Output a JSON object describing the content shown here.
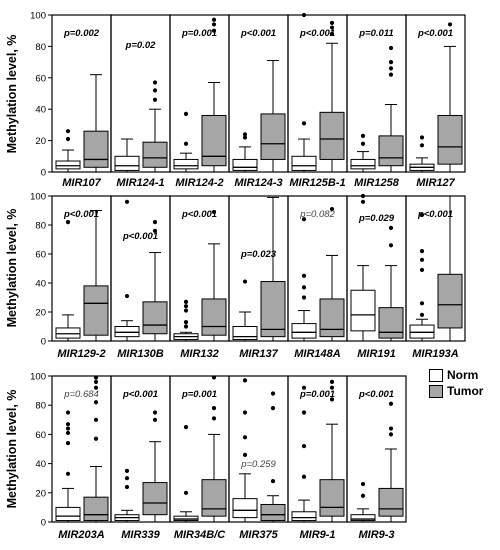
{
  "colors": {
    "norm": "#ffffff",
    "tumor": "#a6a6a6",
    "stroke": "#000000"
  },
  "legend": {
    "norm": "Norm",
    "tumor": "Tumor"
  },
  "chart_data": [
    {
      "type": "boxplot",
      "ylabel": "Methylation level, %",
      "ylim": [
        0,
        100
      ],
      "yticks": [
        0,
        20,
        40,
        60,
        80,
        100
      ],
      "groups": [
        {
          "label": "MIR107",
          "p": "p=0.002",
          "p_style": "bold",
          "norm": {
            "whislo": 0,
            "q1": 2,
            "med": 4,
            "q3": 7,
            "whishi": 14,
            "fliers": [
              21,
              26
            ]
          },
          "tumor": {
            "whislo": 0,
            "q1": 3,
            "med": 8,
            "q3": 26,
            "whishi": 62,
            "fliers": []
          }
        },
        {
          "label": "MIR124-1",
          "p": "p=0.02",
          "p_style": "bold",
          "norm": {
            "whislo": 0,
            "q1": 1,
            "med": 4,
            "q3": 10,
            "whishi": 21,
            "fliers": []
          },
          "tumor": {
            "whislo": 0,
            "q1": 3,
            "med": 9,
            "q3": 19,
            "whishi": 40,
            "fliers": [
              46,
              52,
              57
            ]
          }
        },
        {
          "label": "MIR124-2",
          "p": "p=0.001",
          "p_style": "bold",
          "norm": {
            "whislo": 0,
            "q1": 2,
            "med": 4,
            "q3": 8,
            "whishi": 12,
            "fliers": [
              18,
              37
            ]
          },
          "tumor": {
            "whislo": 0,
            "q1": 4,
            "med": 10,
            "q3": 36,
            "whishi": 57,
            "fliers": [
              90,
              94,
              97
            ]
          }
        },
        {
          "label": "MIR124-3",
          "p": "p<0.001",
          "p_style": "bold",
          "norm": {
            "whislo": 0,
            "q1": 1,
            "med": 3,
            "q3": 8,
            "whishi": 16,
            "fliers": [
              22,
              24
            ]
          },
          "tumor": {
            "whislo": 0,
            "q1": 8,
            "med": 18,
            "q3": 37,
            "whishi": 71,
            "fliers": []
          }
        },
        {
          "label": "MIR125B-1",
          "p": "p<0.001",
          "p_style": "bold",
          "norm": {
            "whislo": 0,
            "q1": 1,
            "med": 4,
            "q3": 10,
            "whishi": 21,
            "fliers": [
              31,
              100
            ]
          },
          "tumor": {
            "whislo": 0,
            "q1": 8,
            "med": 21,
            "q3": 38,
            "whishi": 82,
            "fliers": [
              88,
              92,
              95
            ]
          }
        },
        {
          "label": "MIR1258",
          "p": "p=0.011",
          "p_style": "bold",
          "norm": {
            "whislo": 0,
            "q1": 2,
            "med": 4,
            "q3": 8,
            "whishi": 13,
            "fliers": [
              18,
              23
            ]
          },
          "tumor": {
            "whislo": 0,
            "q1": 4,
            "med": 9,
            "q3": 23,
            "whishi": 43,
            "fliers": [
              62,
              66,
              70,
              79
            ]
          }
        },
        {
          "label": "MIR127",
          "p": "p<0.001",
          "p_style": "bold",
          "norm": {
            "whislo": 0,
            "q1": 1,
            "med": 3,
            "q3": 5,
            "whishi": 9,
            "fliers": [
              17,
              22
            ]
          },
          "tumor": {
            "whislo": 0,
            "q1": 5,
            "med": 16,
            "q3": 36,
            "whishi": 80,
            "fliers": [
              94
            ]
          }
        },
        {
          "label": "MIR129-2",
          "p": "p<0.001",
          "p_style": "bold",
          "norm": {
            "whislo": 0,
            "q1": 2,
            "med": 5,
            "q3": 9,
            "whishi": 18,
            "fliers": [
              82
            ]
          },
          "tumor": {
            "whislo": 0,
            "q1": 4,
            "med": 26,
            "q3": 38,
            "whishi": 90,
            "fliers": []
          }
        },
        {
          "label": "MIR130B",
          "p": "p<0.001",
          "p_style": "bold",
          "norm": {
            "whislo": 0,
            "q1": 3,
            "med": 6,
            "q3": 10,
            "whishi": 14,
            "fliers": [
              31,
              96
            ]
          },
          "tumor": {
            "whislo": 0,
            "q1": 5,
            "med": 11,
            "q3": 27,
            "whishi": 61,
            "fliers": [
              76,
              82
            ]
          }
        },
        {
          "label": "MIR132",
          "p": "p<0.001",
          "p_style": "bold",
          "norm": {
            "whislo": 0,
            "q1": 1,
            "med": 3,
            "q3": 5,
            "whishi": 6,
            "fliers": [
              10,
              13,
              21,
              24,
              27
            ]
          },
          "tumor": {
            "whislo": 0,
            "q1": 4,
            "med": 10,
            "q3": 29,
            "whishi": 67,
            "fliers": [
              89
            ]
          }
        },
        {
          "label": "MIR137",
          "p": "p=0.023",
          "p_style": "bold",
          "norm": {
            "whislo": 0,
            "q1": 1,
            "med": 3,
            "q3": 10,
            "whishi": 20,
            "fliers": [
              41
            ]
          },
          "tumor": {
            "whislo": 0,
            "q1": 3,
            "med": 8,
            "q3": 41,
            "whishi": 99,
            "fliers": []
          }
        },
        {
          "label": "MIR148A",
          "p": "p=0.082",
          "p_style": "normal",
          "norm": {
            "whislo": 0,
            "q1": 2,
            "med": 6,
            "q3": 12,
            "whishi": 21,
            "fliers": [
              30,
              37,
              45,
              84
            ]
          },
          "tumor": {
            "whislo": 0,
            "q1": 3,
            "med": 8,
            "q3": 29,
            "whishi": 59,
            "fliers": [
              91
            ]
          }
        },
        {
          "label": "MIR191",
          "p": "p=0.029",
          "p_style": "bold",
          "norm": {
            "whislo": 0,
            "q1": 7,
            "med": 18,
            "q3": 35,
            "whishi": 52,
            "fliers": [
              96,
              100
            ]
          },
          "tumor": {
            "whislo": 0,
            "q1": 2,
            "med": 6,
            "q3": 23,
            "whishi": 52,
            "fliers": [
              66,
              78
            ]
          }
        },
        {
          "label": "MIR193A",
          "p": "p<0.001",
          "p_style": "bold",
          "norm": {
            "whislo": 0,
            "q1": 2,
            "med": 6,
            "q3": 11,
            "whishi": 15,
            "fliers": [
              18,
              26,
              49,
              56,
              62,
              87
            ]
          },
          "tumor": {
            "whislo": 0,
            "q1": 9,
            "med": 25,
            "q3": 46,
            "whishi": 100,
            "fliers": []
          }
        },
        {
          "label": "MIR203A",
          "p": "p=0.684",
          "p_style": "normal",
          "norm": {
            "whislo": 0,
            "q1": 1,
            "med": 4,
            "q3": 10,
            "whishi": 23,
            "fliers": [
              33,
              54,
              61,
              64,
              67,
              75
            ]
          },
          "tumor": {
            "whislo": 0,
            "q1": 1,
            "med": 5,
            "q3": 17,
            "whishi": 38,
            "fliers": [
              57,
              70,
              82,
              92,
              96,
              99
            ]
          }
        },
        {
          "label": "MIR339",
          "p": "p<0.001",
          "p_style": "bold",
          "norm": {
            "whislo": 0,
            "q1": 1,
            "med": 3,
            "q3": 5,
            "whishi": 8,
            "fliers": [
              24,
              30,
              35
            ]
          },
          "tumor": {
            "whislo": 0,
            "q1": 5,
            "med": 13,
            "q3": 27,
            "whishi": 55,
            "fliers": [
              70,
              75
            ]
          }
        },
        {
          "label": "MIR34B/C",
          "p": "p=0.001",
          "p_style": "bold",
          "norm": {
            "whislo": 0,
            "q1": 1,
            "med": 2,
            "q3": 4,
            "whishi": 7,
            "fliers": [
              20,
              65
            ]
          },
          "tumor": {
            "whislo": 0,
            "q1": 4,
            "med": 9,
            "q3": 29,
            "whishi": 60,
            "fliers": [
              71,
              78,
              99
            ]
          }
        },
        {
          "label": "MIR375",
          "p": "p=0.259",
          "p_style": "normal",
          "norm": {
            "whislo": 0,
            "q1": 3,
            "med": 8,
            "q3": 16,
            "whishi": 33,
            "fliers": [
              46,
              58,
              75,
              97
            ]
          },
          "tumor": {
            "whislo": 0,
            "q1": 1,
            "med": 5,
            "q3": 12,
            "whishi": 18,
            "fliers": [
              28,
              78,
              88
            ]
          }
        },
        {
          "label": "MIR9-1",
          "p": "p=0.001",
          "p_style": "bold",
          "norm": {
            "whislo": 0,
            "q1": 1,
            "med": 3,
            "q3": 7,
            "whishi": 15,
            "fliers": [
              31,
              52,
              75,
              92
            ]
          },
          "tumor": {
            "whislo": 0,
            "q1": 4,
            "med": 10,
            "q3": 29,
            "whishi": 67,
            "fliers": [
              84,
              92,
              96
            ]
          }
        },
        {
          "label": "MIR9-3",
          "p": "p<0.001",
          "p_style": "bold",
          "norm": {
            "whislo": 0,
            "q1": 1,
            "med": 2,
            "q3": 5,
            "whishi": 9,
            "fliers": [
              18,
              26
            ]
          },
          "tumor": {
            "whislo": 0,
            "q1": 4,
            "med": 9,
            "q3": 23,
            "whishi": 50,
            "fliers": [
              60,
              64,
              81
            ]
          }
        }
      ]
    }
  ]
}
